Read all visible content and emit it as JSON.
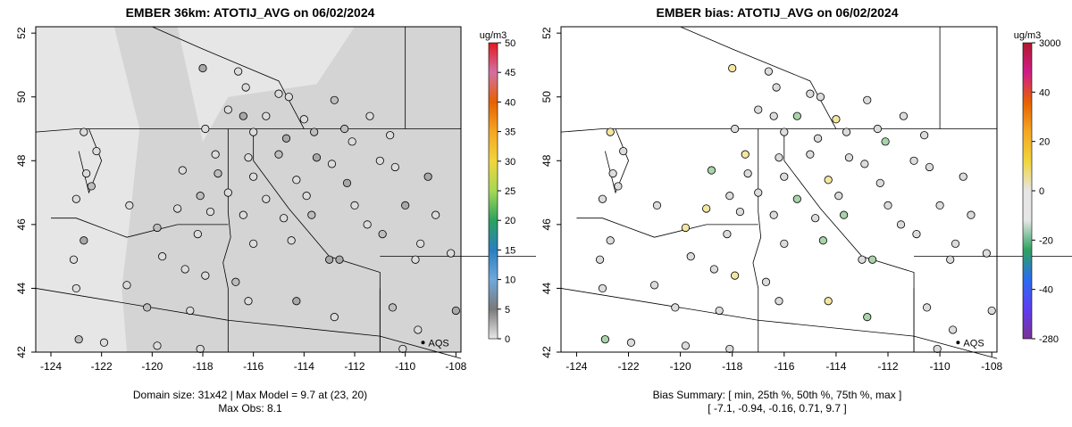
{
  "left_panel": {
    "title": "EMBER 36km: ATOTIJ_AVG on 06/02/2024",
    "caption_line1": "Domain size: 31x42 | Max Model = 9.7 at (23, 20)",
    "caption_line2": "Max Obs: 8.1",
    "colorbar_unit": "ug/m3",
    "colorbar_ticks": [
      "0",
      "5",
      "10",
      "15",
      "20",
      "25",
      "30",
      "35",
      "40",
      "45",
      "50"
    ],
    "legend_label": "AQS"
  },
  "right_panel": {
    "title": "EMBER bias: ATOTIJ_AVG on 06/02/2024",
    "caption_line1": "Bias Summary: [ min, 25th %, 50th %, 75th %, max ]",
    "caption_line2": "[ -7.1,   -0.94,   -0.16,   0.71,   9.7 ]",
    "colorbar_unit": "ug/m3",
    "colorbar_ticks": [
      "3000",
      "40",
      "20",
      "0",
      "-20",
      "-40",
      "-280"
    ],
    "legend_label": "AQS"
  },
  "axes": {
    "x_ticks": [
      "-124",
      "-122",
      "-120",
      "-118",
      "-116",
      "-114",
      "-112",
      "-110",
      "-108"
    ],
    "y_ticks": [
      "42",
      "44",
      "46",
      "48",
      "50",
      "52"
    ]
  },
  "colors": {
    "model_low": "#e6e6e6",
    "model_mid": "#cfcfcf",
    "obs_neutral": "#d9d9d9",
    "bias_positive": "#f3e7a0",
    "bias_negative": "#a9d3a9",
    "outline": "#000000"
  },
  "map_data": {
    "lon_range": [
      -124.6,
      -107.8
    ],
    "lat_range": [
      42.0,
      52.2
    ],
    "observed_sites": [
      {
        "lon": -118.0,
        "lat": 50.9
      },
      {
        "lon": -116.6,
        "lat": 50.8
      },
      {
        "lon": -116.3,
        "lat": 50.3
      },
      {
        "lon": -115.0,
        "lat": 50.1
      },
      {
        "lon": -114.6,
        "lat": 50.0
      },
      {
        "lon": -112.8,
        "lat": 49.9
      },
      {
        "lon": -117.0,
        "lat": 49.6
      },
      {
        "lon": -116.4,
        "lat": 49.4
      },
      {
        "lon": -115.5,
        "lat": 49.4
      },
      {
        "lon": -114.0,
        "lat": 49.3
      },
      {
        "lon": -112.4,
        "lat": 49.0
      },
      {
        "lon": -111.4,
        "lat": 49.4
      },
      {
        "lon": -117.9,
        "lat": 49.0
      },
      {
        "lon": -116.0,
        "lat": 48.9
      },
      {
        "lon": -114.7,
        "lat": 48.7
      },
      {
        "lon": -113.6,
        "lat": 48.9
      },
      {
        "lon": -112.1,
        "lat": 48.6
      },
      {
        "lon": -110.6,
        "lat": 48.8
      },
      {
        "lon": -117.5,
        "lat": 48.2
      },
      {
        "lon": -116.2,
        "lat": 48.1
      },
      {
        "lon": -115.0,
        "lat": 48.2
      },
      {
        "lon": -113.5,
        "lat": 48.1
      },
      {
        "lon": -112.9,
        "lat": 47.9
      },
      {
        "lon": -111.0,
        "lat": 48.0
      },
      {
        "lon": -118.8,
        "lat": 47.7
      },
      {
        "lon": -117.4,
        "lat": 47.6
      },
      {
        "lon": -116.0,
        "lat": 47.5
      },
      {
        "lon": -114.3,
        "lat": 47.4
      },
      {
        "lon": -112.3,
        "lat": 47.3
      },
      {
        "lon": -110.4,
        "lat": 47.8
      },
      {
        "lon": -118.1,
        "lat": 46.9
      },
      {
        "lon": -117.0,
        "lat": 47.0
      },
      {
        "lon": -115.5,
        "lat": 46.8
      },
      {
        "lon": -113.9,
        "lat": 46.9
      },
      {
        "lon": -112.0,
        "lat": 46.6
      },
      {
        "lon": -109.1,
        "lat": 47.5
      },
      {
        "lon": -119.0,
        "lat": 46.5
      },
      {
        "lon": -117.7,
        "lat": 46.4
      },
      {
        "lon": -116.4,
        "lat": 46.3
      },
      {
        "lon": -114.8,
        "lat": 46.2
      },
      {
        "lon": -113.7,
        "lat": 46.3
      },
      {
        "lon": -111.5,
        "lat": 46.0
      },
      {
        "lon": -110.0,
        "lat": 46.6
      },
      {
        "lon": -108.8,
        "lat": 46.3
      },
      {
        "lon": -120.9,
        "lat": 46.6
      },
      {
        "lon": -119.8,
        "lat": 45.9
      },
      {
        "lon": -118.2,
        "lat": 45.7
      },
      {
        "lon": -116.0,
        "lat": 45.4
      },
      {
        "lon": -114.5,
        "lat": 45.5
      },
      {
        "lon": -113.0,
        "lat": 44.9
      },
      {
        "lon": -110.9,
        "lat": 45.7
      },
      {
        "lon": -109.4,
        "lat": 45.4
      },
      {
        "lon": -119.6,
        "lat": 45.0
      },
      {
        "lon": -118.7,
        "lat": 44.6
      },
      {
        "lon": -117.9,
        "lat": 44.4
      },
      {
        "lon": -116.7,
        "lat": 44.2
      },
      {
        "lon": -112.6,
        "lat": 44.9
      },
      {
        "lon": -109.6,
        "lat": 44.9
      },
      {
        "lon": -108.2,
        "lat": 45.1
      },
      {
        "lon": -121.0,
        "lat": 44.1
      },
      {
        "lon": -120.2,
        "lat": 43.4
      },
      {
        "lon": -118.5,
        "lat": 43.3
      },
      {
        "lon": -116.2,
        "lat": 43.6
      },
      {
        "lon": -114.3,
        "lat": 43.6
      },
      {
        "lon": -112.8,
        "lat": 43.1
      },
      {
        "lon": -110.5,
        "lat": 43.4
      },
      {
        "lon": -121.9,
        "lat": 42.3
      },
      {
        "lon": -119.8,
        "lat": 42.2
      },
      {
        "lon": -118.1,
        "lat": 42.1
      },
      {
        "lon": -109.5,
        "lat": 42.7
      },
      {
        "lon": -108.0,
        "lat": 43.3
      },
      {
        "lon": -110.1,
        "lat": 42.1
      },
      {
        "lon": -122.7,
        "lat": 48.9
      },
      {
        "lon": -122.2,
        "lat": 48.3
      },
      {
        "lon": -122.6,
        "lat": 47.6
      },
      {
        "lon": -122.4,
        "lat": 47.2
      },
      {
        "lon": -123.0,
        "lat": 46.8
      },
      {
        "lon": -122.7,
        "lat": 45.5
      },
      {
        "lon": -123.1,
        "lat": 44.9
      },
      {
        "lon": -123.0,
        "lat": 44.0
      },
      {
        "lon": -122.9,
        "lat": 42.4
      }
    ],
    "aqs_marker": {
      "lon": -109.3,
      "lat": 42.3
    }
  }
}
